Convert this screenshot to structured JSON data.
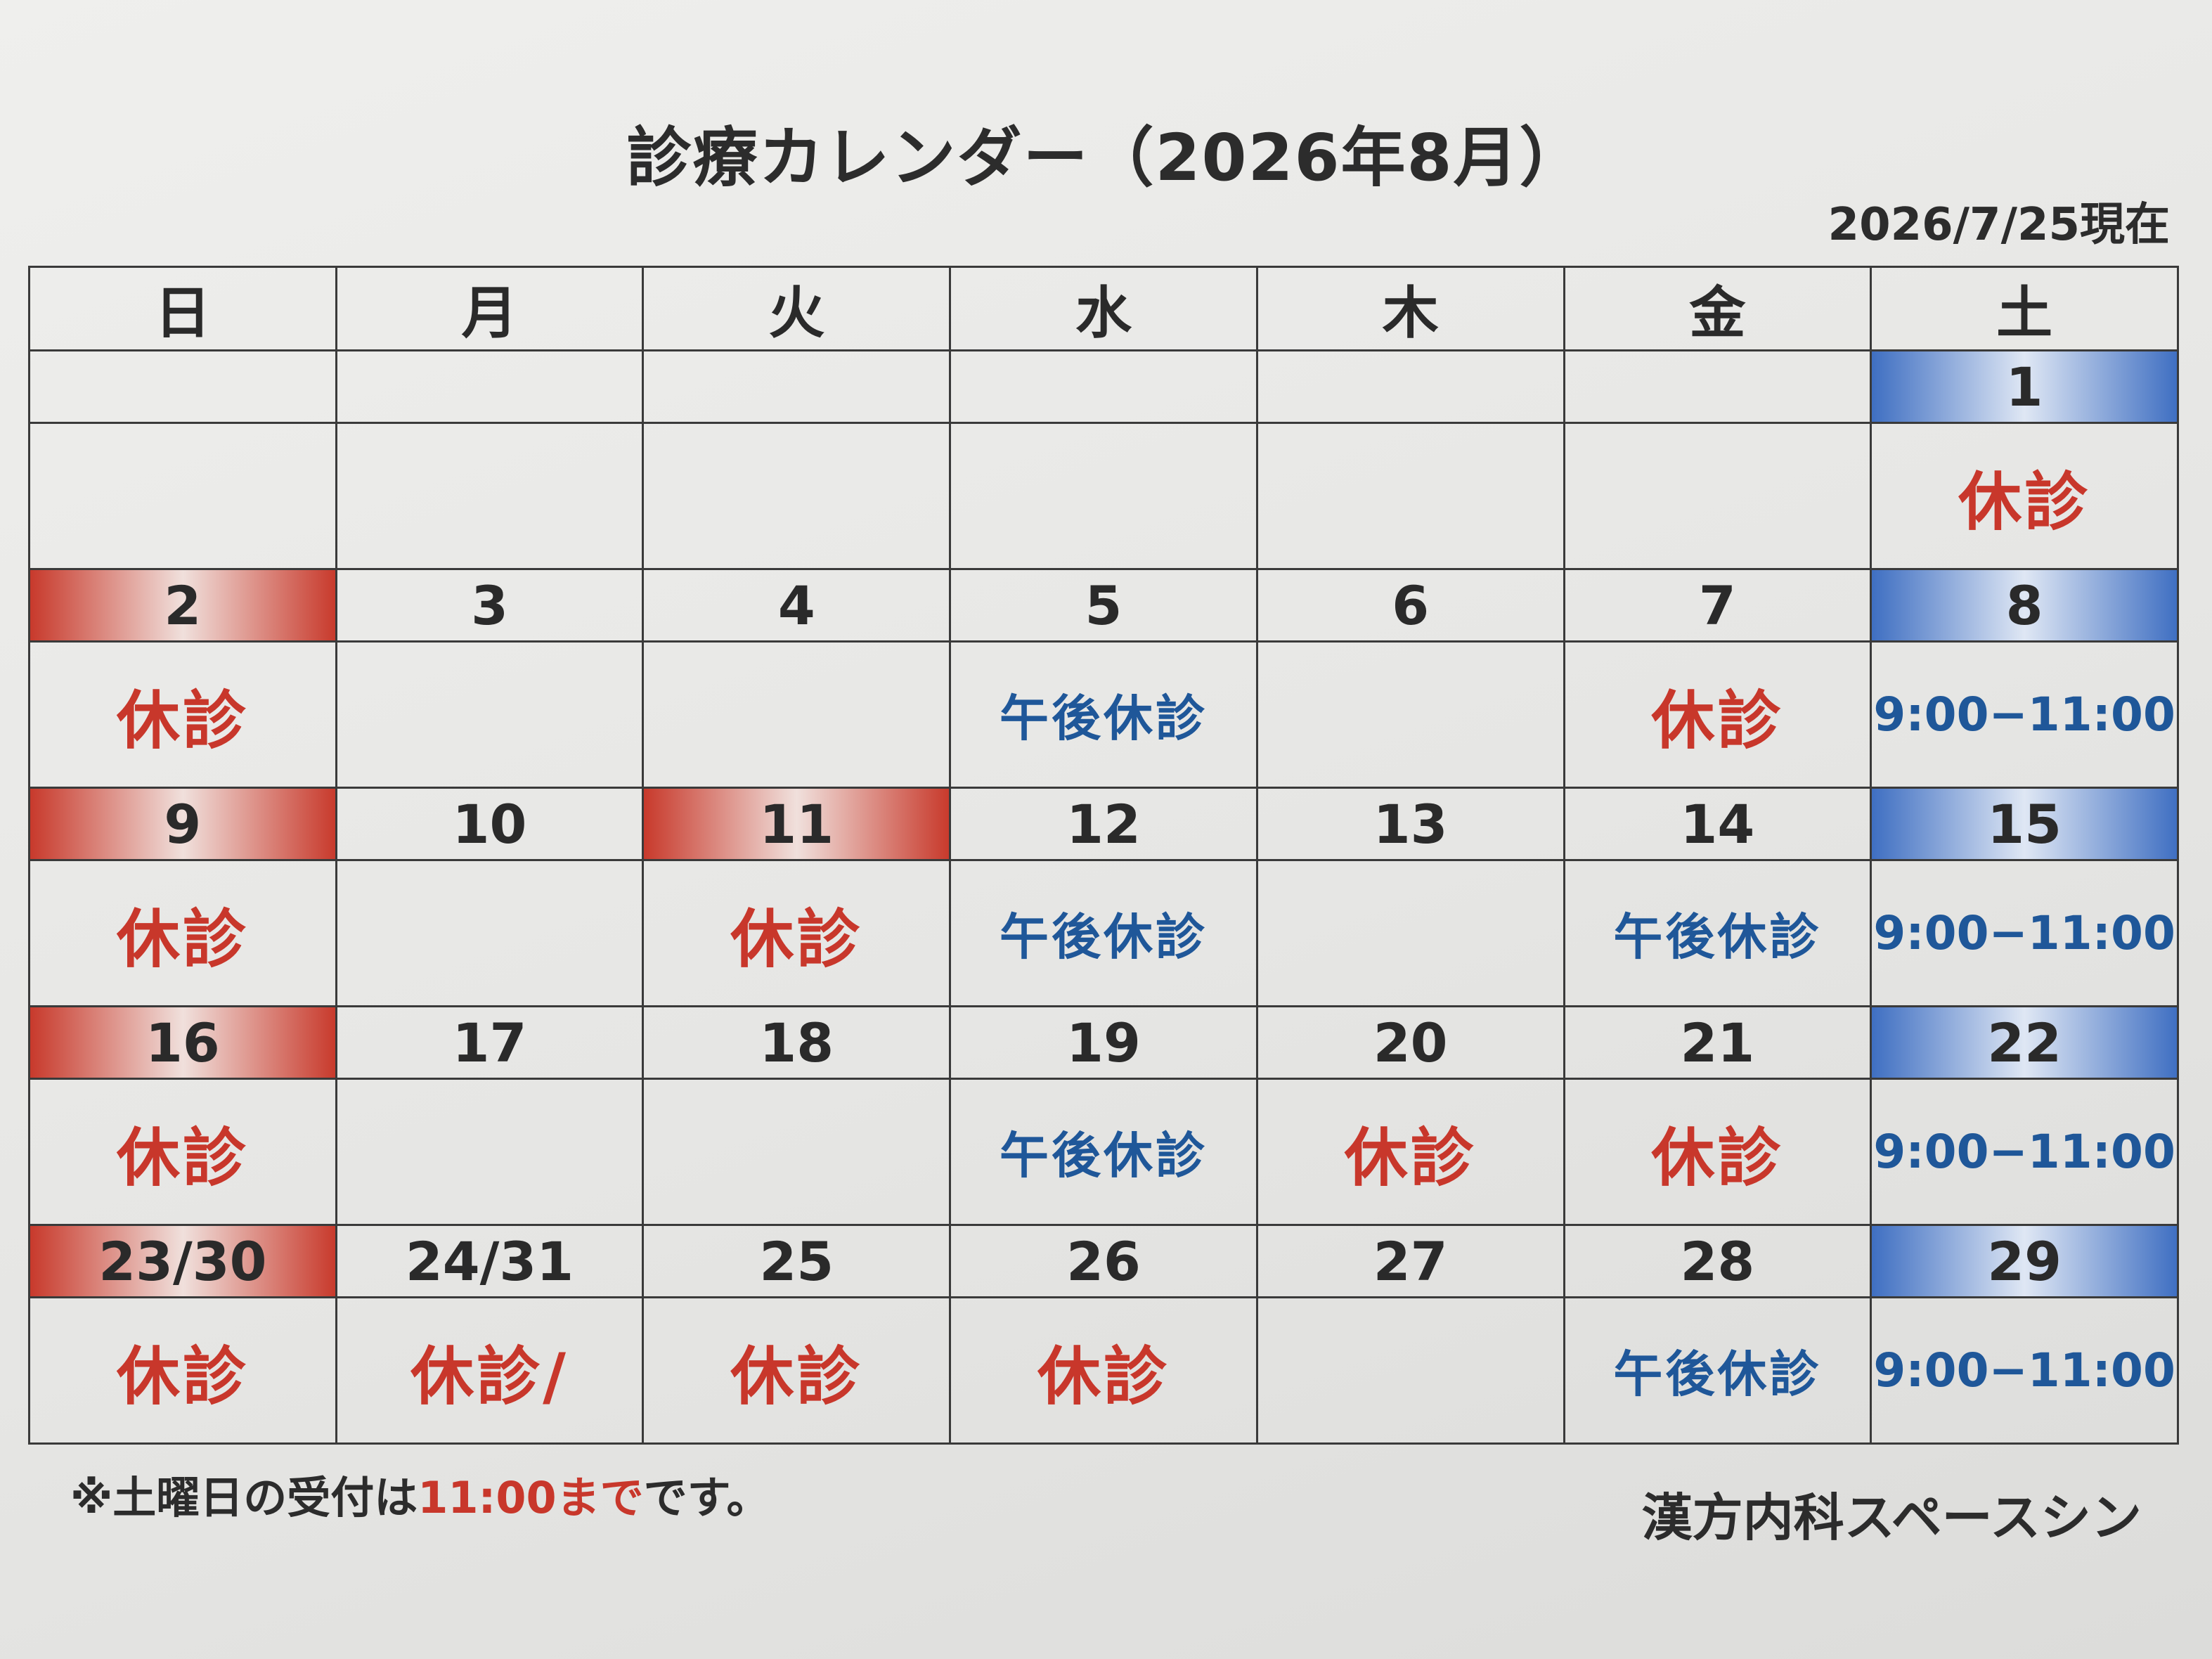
{
  "title": "診療カレンダー（2026年8月）",
  "as_of": "2026/7/25現在",
  "colors": {
    "closed": "#c8372b",
    "afternoon_closed": "#1f5799",
    "saturday_header": "#3f6fc2",
    "holiday_header": "#c83a2c"
  },
  "weekdays": [
    "日",
    "月",
    "火",
    "水",
    "木",
    "金",
    "土"
  ],
  "weeks": [
    {
      "days": [
        "",
        "",
        "",
        "",
        "",
        "",
        "1"
      ],
      "statuses": [
        "",
        "",
        "",
        "",
        "",
        "",
        "休診"
      ]
    },
    {
      "days": [
        "2",
        "3",
        "4",
        "5",
        "6",
        "7",
        "8"
      ],
      "statuses": [
        "休診",
        "",
        "",
        "午後休診",
        "",
        "休診",
        "9:00−11:00"
      ]
    },
    {
      "days": [
        "9",
        "10",
        "11",
        "12",
        "13",
        "14",
        "15"
      ],
      "statuses": [
        "休診",
        "",
        "休診",
        "午後休診",
        "",
        "午後休診",
        "9:00−11:00"
      ]
    },
    {
      "days": [
        "16",
        "17",
        "18",
        "19",
        "20",
        "21",
        "22"
      ],
      "statuses": [
        "休診",
        "",
        "",
        "午後休診",
        "休診",
        "休診",
        "9:00−11:00"
      ]
    },
    {
      "days": [
        "23/30",
        "24/31",
        "25",
        "26",
        "27",
        "28",
        "29"
      ],
      "statuses": [
        "休診",
        "休診/",
        "休診",
        "休診",
        "",
        "午後休診",
        "9:00−11:00"
      ]
    }
  ],
  "note": {
    "prefix": "※土曜日の受付は",
    "highlight": "11:00まで",
    "suffix": "です。"
  },
  "clinic_name": "漢方内科スペースシン"
}
